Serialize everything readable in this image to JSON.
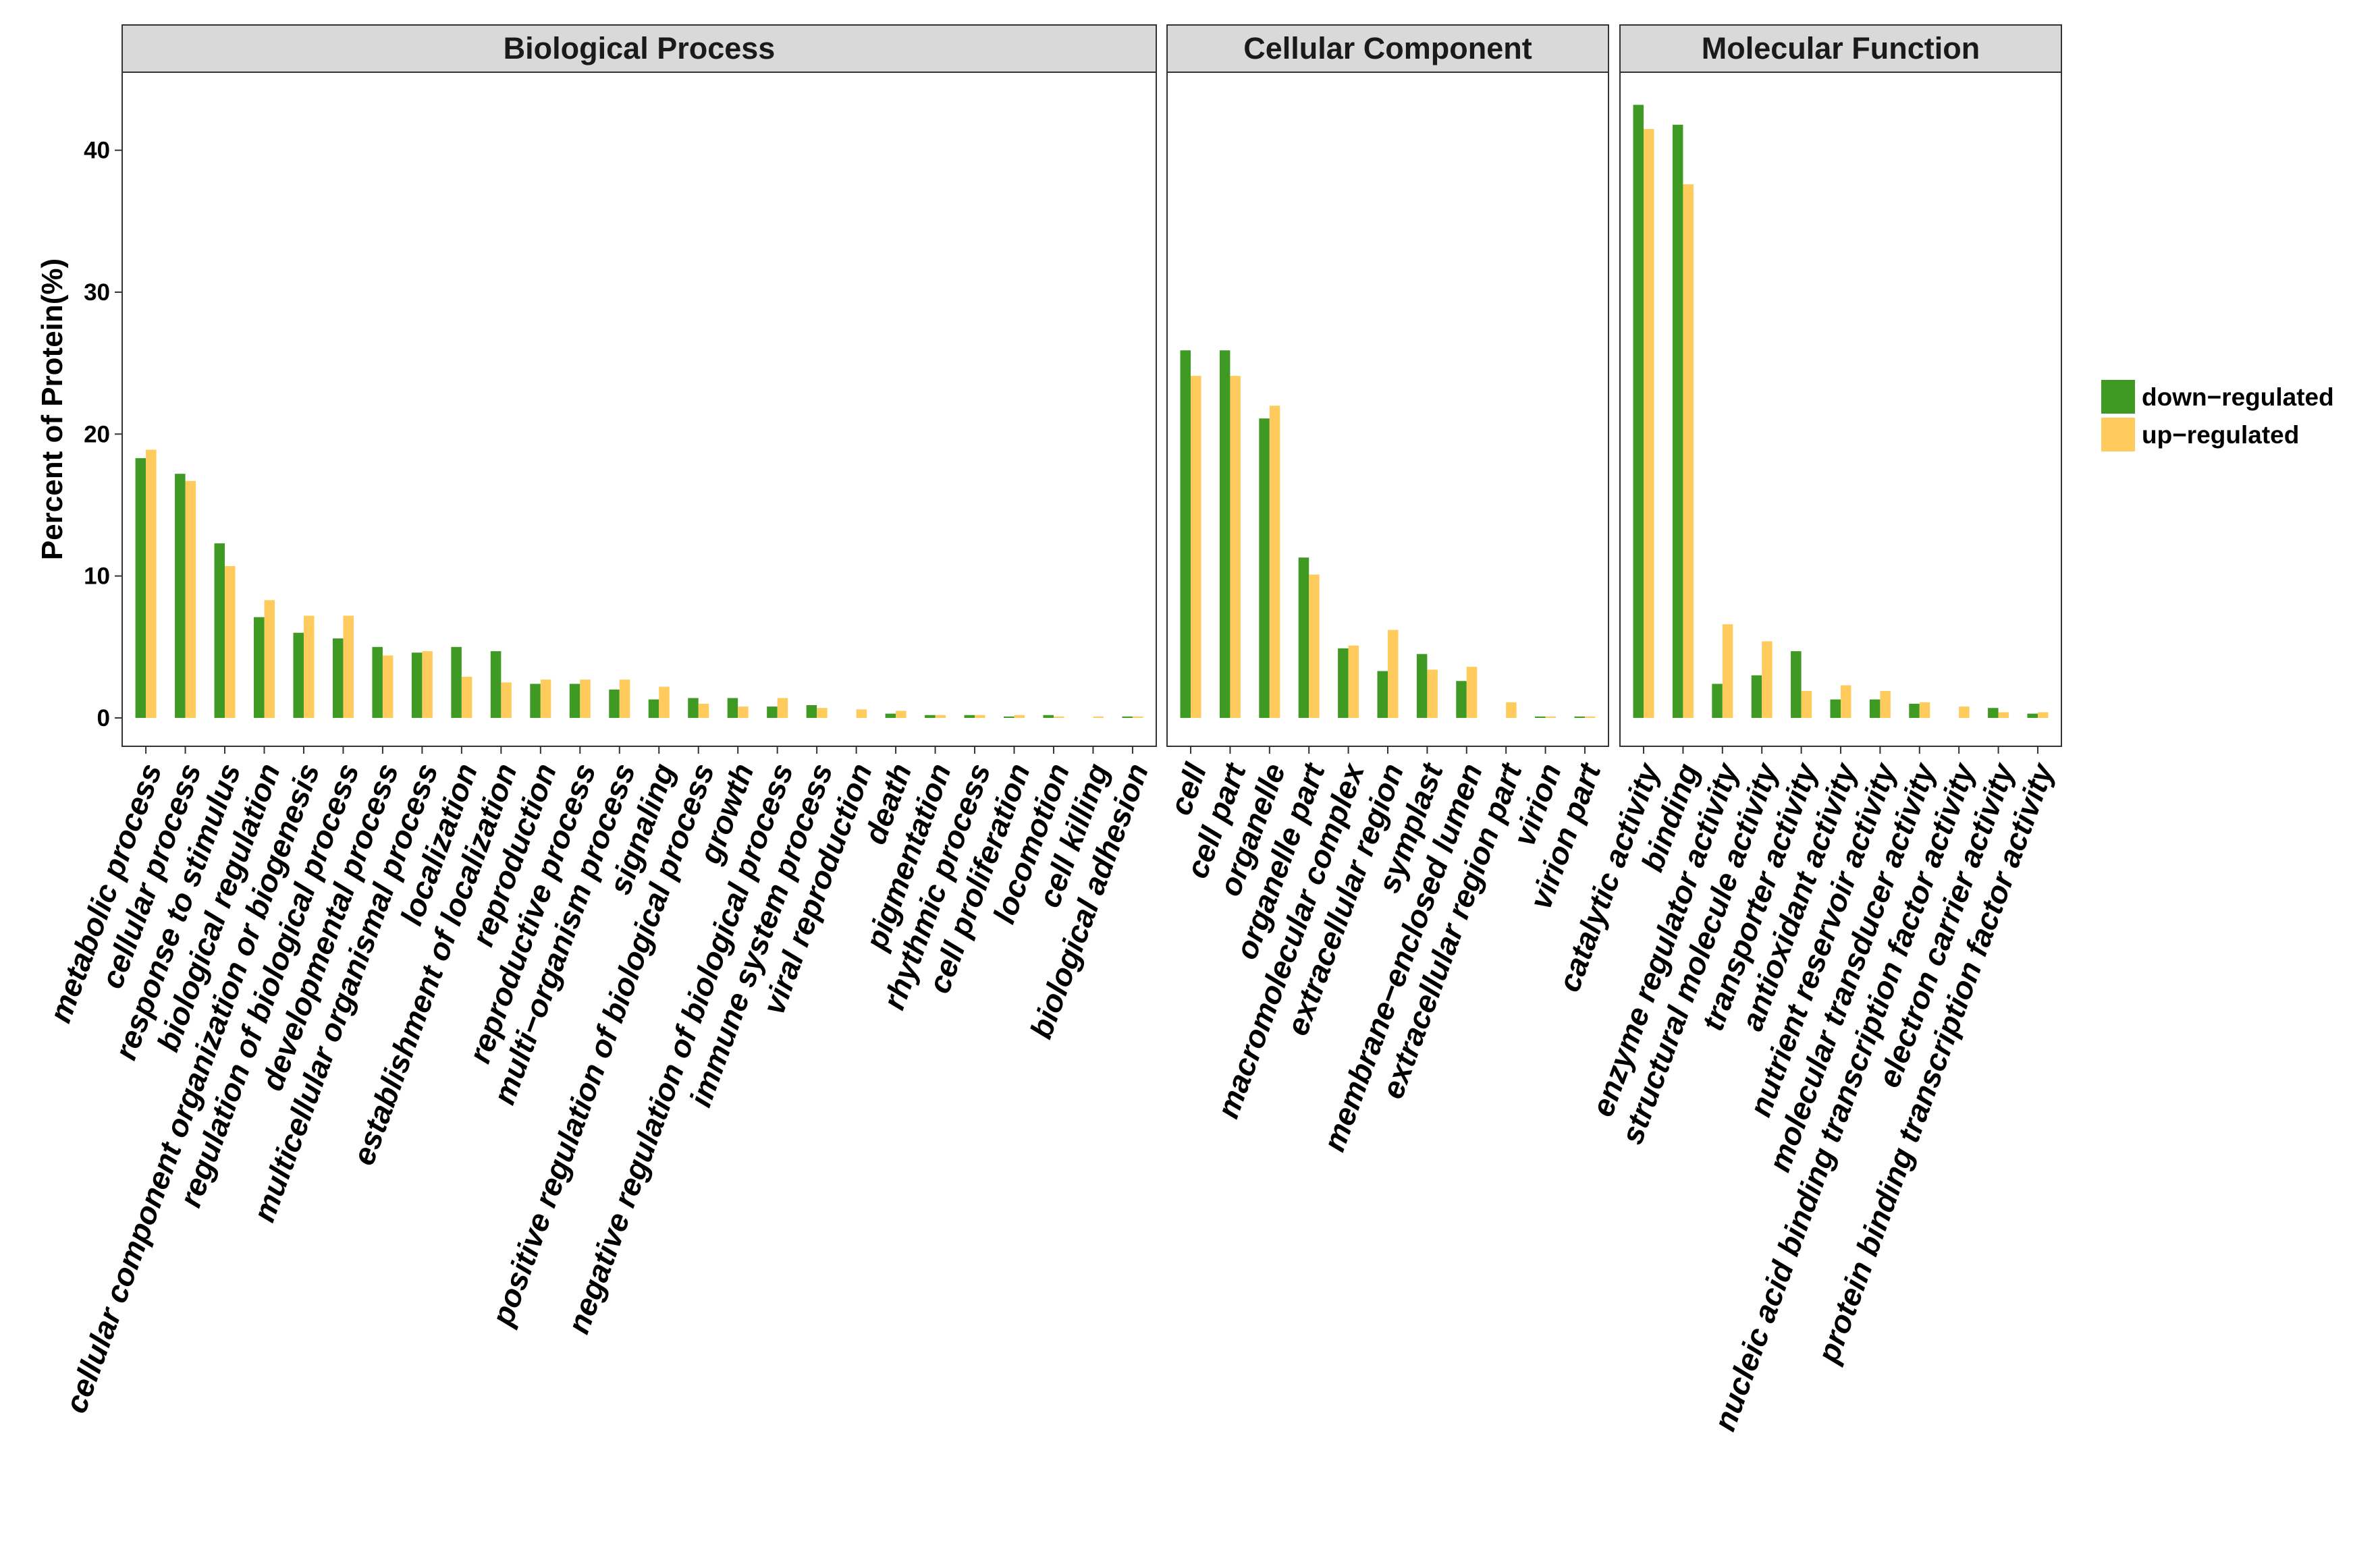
{
  "chart_data": {
    "type": "bar",
    "ylabel": "Percent of Protein(%)",
    "xlabel": "",
    "ylim": [
      -2,
      45.5
    ],
    "yticks": [
      0,
      10,
      20,
      30,
      40
    ],
    "grid": false,
    "legend_position": "right",
    "series": [
      {
        "name": "down−regulated",
        "color": "#3e9a22"
      },
      {
        "name": "up−regulated",
        "color": "#ffcb5c"
      }
    ],
    "panels": [
      {
        "title": "Biological Process",
        "categories": [
          "metabolic process",
          "cellular process",
          "response to stimulus",
          "biological regulation",
          "cellular component organization or biogenesis",
          "regulation of biological process",
          "developmental process",
          "multicellular organismal process",
          "localization",
          "establishment of localization",
          "reproduction",
          "reproductive process",
          "multi−organism process",
          "signaling",
          "positive regulation of biological process",
          "growth",
          "negative regulation of biological process",
          "immune system process",
          "viral reproduction",
          "death",
          "pigmentation",
          "rhythmic process",
          "cell proliferation",
          "locomotion",
          "cell killing",
          "biological adhesion"
        ],
        "down": [
          18.3,
          17.2,
          12.3,
          7.1,
          6.0,
          5.6,
          5.0,
          4.6,
          5.0,
          4.7,
          2.4,
          2.4,
          2.0,
          1.3,
          1.4,
          1.4,
          0.8,
          0.9,
          0.0,
          0.3,
          0.2,
          0.2,
          0.1,
          0.2,
          0.0,
          0.1
        ],
        "up": [
          18.9,
          16.7,
          10.7,
          8.3,
          7.2,
          7.2,
          4.4,
          4.7,
          2.9,
          2.5,
          2.7,
          2.7,
          2.7,
          2.2,
          1.0,
          0.8,
          1.4,
          0.7,
          0.6,
          0.5,
          0.2,
          0.2,
          0.2,
          0.1,
          0.1,
          0.1
        ]
      },
      {
        "title": "Cellular Component",
        "categories": [
          "cell",
          "cell part",
          "organelle",
          "organelle part",
          "macromolecular complex",
          "extracellular region",
          "symplast",
          "membrane−enclosed lumen",
          "extracellular region part",
          "virion",
          "virion part"
        ],
        "down": [
          25.9,
          25.9,
          21.1,
          11.3,
          4.9,
          3.3,
          4.5,
          2.6,
          0.0,
          0.1,
          0.1
        ],
        "up": [
          24.1,
          24.1,
          22.0,
          10.1,
          5.1,
          6.2,
          3.4,
          3.6,
          1.1,
          0.1,
          0.1
        ]
      },
      {
        "title": "Molecular Function",
        "categories": [
          "catalytic activity",
          "binding",
          "enzyme regulator activity",
          "structural molecule activity",
          "transporter activity",
          "antioxidant activity",
          "nutrient reservoir activity",
          "molecular transducer activity",
          "nucleic acid binding transcription factor activity",
          "electron carrier activity",
          "protein binding transcription factor activity"
        ],
        "down": [
          43.2,
          41.8,
          2.4,
          3.0,
          4.7,
          1.3,
          1.3,
          1.0,
          0.0,
          0.7,
          0.3
        ],
        "up": [
          41.5,
          37.6,
          6.6,
          5.4,
          1.9,
          2.3,
          1.9,
          1.1,
          0.8,
          0.4,
          0.4
        ]
      }
    ]
  }
}
